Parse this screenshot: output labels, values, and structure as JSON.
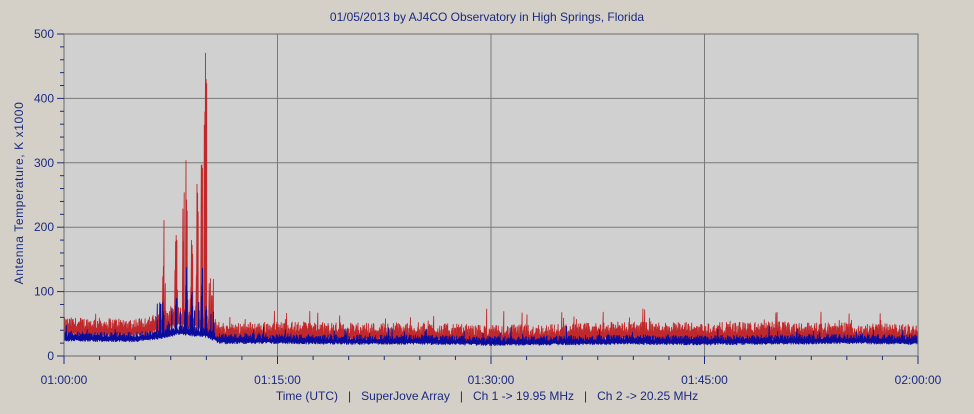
{
  "chart_data": {
    "type": "line",
    "title": "01/05/2013  by  AJ4CO Observatory  in  High Springs, Florida",
    "ylabel": "Antenna Temperature, K x1000",
    "xlabel": "Time (UTC)   |   SuperJove Array   |   Ch 1 -> 19.95 MHz   |   Ch 2 -> 20.25 MHz",
    "x_range": [
      "01:00:00",
      "02:00:00"
    ],
    "xlim_minutes": [
      0,
      60
    ],
    "ylim": [
      0,
      500
    ],
    "x_ticks": [
      "01:00:00",
      "01:15:00",
      "01:30:00",
      "01:45:00",
      "02:00:00"
    ],
    "x_tick_minutes": [
      0,
      15,
      30,
      45,
      60
    ],
    "y_ticks": [
      0,
      100,
      200,
      300,
      400,
      500
    ],
    "grid": true,
    "series": [
      {
        "name": "Ch 1 -> 19.95 MHz",
        "color": "#c0282b",
        "baseline_minutes": [
          0,
          5,
          7,
          8,
          9,
          10,
          11,
          15,
          20,
          25,
          30,
          35,
          40,
          45,
          50,
          55,
          60
        ],
        "baseline_values": [
          48,
          47,
          55,
          65,
          60,
          55,
          40,
          42,
          40,
          40,
          36,
          38,
          42,
          40,
          42,
          40,
          38
        ],
        "peaks": [
          {
            "minute": 7.0,
            "value": 145
          },
          {
            "minute": 7.9,
            "value": 190
          },
          {
            "minute": 8.4,
            "value": 180
          },
          {
            "minute": 8.6,
            "value": 245
          },
          {
            "minute": 9.0,
            "value": 170
          },
          {
            "minute": 9.4,
            "value": 230
          },
          {
            "minute": 9.7,
            "value": 305
          },
          {
            "minute": 9.9,
            "value": 375
          },
          {
            "minute": 10.0,
            "value": 432
          },
          {
            "minute": 10.4,
            "value": 95
          }
        ]
      },
      {
        "name": "Ch 2 -> 20.25 MHz",
        "color": "#0c0c9c",
        "baseline_minutes": [
          0,
          5,
          7,
          8,
          9,
          10,
          11,
          15,
          20,
          25,
          30,
          35,
          40,
          45,
          50,
          55,
          60
        ],
        "baseline_values": [
          32,
          31,
          36,
          42,
          40,
          38,
          28,
          28,
          27,
          27,
          25,
          26,
          27,
          26,
          27,
          28,
          27
        ],
        "peaks": [
          {
            "minute": 7.0,
            "value": 75
          },
          {
            "minute": 7.9,
            "value": 95
          },
          {
            "minute": 8.6,
            "value": 120
          },
          {
            "minute": 9.0,
            "value": 95
          },
          {
            "minute": 9.7,
            "value": 110
          },
          {
            "minute": 10.0,
            "value": 85
          }
        ]
      }
    ]
  }
}
